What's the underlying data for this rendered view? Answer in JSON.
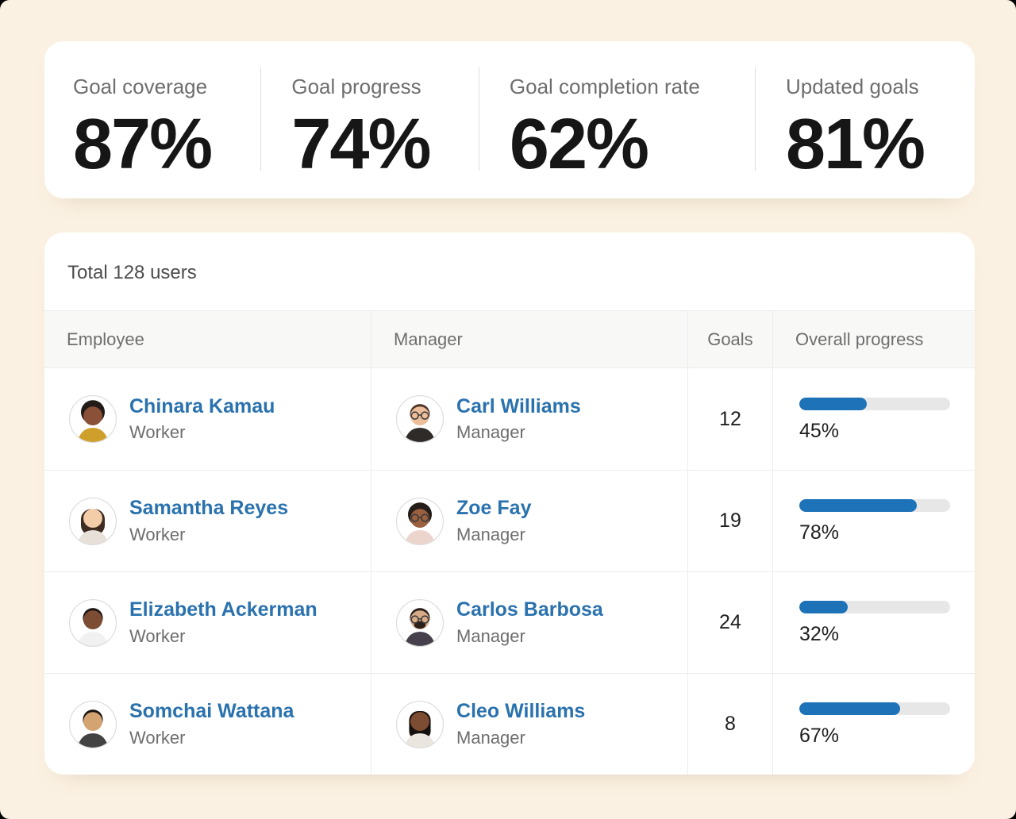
{
  "colors": {
    "page_bg": "#fbf1e2",
    "card_bg": "#ffffff",
    "accent_blue": "#2a72ae",
    "progress_fill": "#1e73b8",
    "progress_track": "#e7e7e7"
  },
  "stats": {
    "items": [
      {
        "label": "Goal coverage",
        "value": "87%"
      },
      {
        "label": "Goal progress",
        "value": "74%"
      },
      {
        "label": "Goal completion rate",
        "value": "62%"
      },
      {
        "label": "Updated goals",
        "value": "81%"
      }
    ]
  },
  "table": {
    "summary_text": "Total 128 users",
    "columns": [
      "Employee",
      "Manager",
      "Goals",
      "Overall progress"
    ],
    "rows": [
      {
        "employee": {
          "name": "Chinara Kamau",
          "role": "Worker",
          "avatar": {
            "style": "afro",
            "skin": "#8a5038",
            "hair": "#221b18",
            "top": "#cf9f2c",
            "glasses": false,
            "beard": false
          }
        },
        "manager": {
          "name": "Carl Williams",
          "role": "Manager",
          "avatar": {
            "style": "short",
            "skin": "#ecbe9a",
            "hair": "#4f382b",
            "top": "#2e2b29",
            "glasses": true,
            "beard": false
          }
        },
        "goals": "12",
        "progress_percent": 45,
        "progress_label": "45%"
      },
      {
        "employee": {
          "name": "Samantha Reyes",
          "role": "Worker",
          "avatar": {
            "style": "long",
            "skin": "#f3cda8",
            "hair": "#3e2c21",
            "top": "#e7e0d8",
            "glasses": false,
            "beard": false
          }
        },
        "manager": {
          "name": "Zoe Fay",
          "role": "Manager",
          "avatar": {
            "style": "afro",
            "skin": "#9a6040",
            "hair": "#241d19",
            "top": "#ecd5cd",
            "glasses": true,
            "beard": false
          }
        },
        "goals": "19",
        "progress_percent": 78,
        "progress_label": "78%"
      },
      {
        "employee": {
          "name": "Elizabeth Ackerman",
          "role": "Worker",
          "avatar": {
            "style": "short",
            "skin": "#7c4c33",
            "hair": "#1b1513",
            "top": "#f1f1f1",
            "glasses": false,
            "beard": false
          }
        },
        "manager": {
          "name": "Carlos Barbosa",
          "role": "Manager",
          "avatar": {
            "style": "short",
            "skin": "#d8ab87",
            "hair": "#2a211d",
            "top": "#45404b",
            "glasses": true,
            "beard": true
          }
        },
        "goals": "24",
        "progress_percent": 32,
        "progress_label": "32%"
      },
      {
        "employee": {
          "name": "Somchai Wattana",
          "role": "Worker",
          "avatar": {
            "style": "short",
            "skin": "#d3a371",
            "hair": "#181310",
            "top": "#424242",
            "glasses": false,
            "beard": false
          }
        },
        "manager": {
          "name": "Cleo Williams",
          "role": "Manager",
          "avatar": {
            "style": "braids",
            "skin": "#7c4c33",
            "hair": "#15100e",
            "top": "#eae6df",
            "glasses": false,
            "beard": false
          }
        },
        "goals": "8",
        "progress_percent": 67,
        "progress_label": "67%"
      }
    ]
  }
}
